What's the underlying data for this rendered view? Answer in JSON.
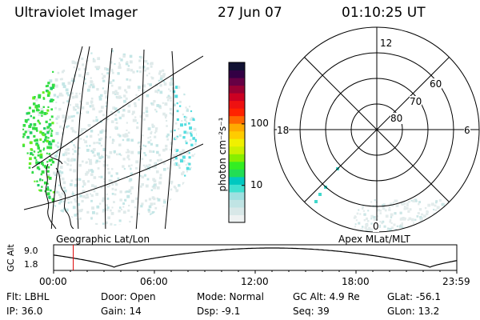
{
  "header": {
    "instrument": "Ultraviolet Imager",
    "date": "27 Jun 07",
    "time": "01:10:25 UT"
  },
  "colorbar": {
    "unit_label": "photon cm⁻²s⁻¹",
    "ticks": [
      {
        "label": "100",
        "value": 100
      },
      {
        "label": "10",
        "value": 10
      }
    ],
    "range": [
      2.5,
      1000
    ],
    "colors": [
      "#eef2f2",
      "#d8e8e8",
      "#c0e4e4",
      "#9ee0e0",
      "#40e0d0",
      "#00c8c0",
      "#22dd55",
      "#33ee22",
      "#88ee00",
      "#ccf000",
      "#f0f000",
      "#ffcc00",
      "#ffaa00",
      "#ff6600",
      "#ff2200",
      "#ee1111",
      "#cc0022",
      "#990033",
      "#660044",
      "#330044",
      "#111133"
    ]
  },
  "geo_map": {
    "label": "Geographic Lat/Lon"
  },
  "polar_plot": {
    "label": "Apex MLat/MLT",
    "mlt_labels": {
      "top": "12",
      "left": "18",
      "right": "6",
      "bottom": "0"
    },
    "lat_labels": [
      "60",
      "70",
      "80"
    ]
  },
  "timeline": {
    "ylabel": "GC Alt",
    "yticks": [
      "9.0",
      "1.8"
    ],
    "xticks": [
      "00:00",
      "06:00",
      "12:00",
      "18:00",
      "23:59"
    ],
    "marker_time_hours": 1.17,
    "curve": {
      "min_alt": 1.8,
      "max_alt": 9.0,
      "minima_hours": [
        3.6,
        22.4
      ]
    }
  },
  "info": {
    "filter": "Flt: LBHL",
    "ip": "IP: 36.0",
    "door": "Door: Open",
    "gain": "Gain: 14",
    "mode": "Mode: Normal",
    "dsp": "Dsp:   -9.1",
    "gc_alt": "GC Alt: 4.9 Re",
    "seq": "Seq: 39",
    "glat": "GLat: -56.1",
    "glon": "GLon:  13.2"
  }
}
